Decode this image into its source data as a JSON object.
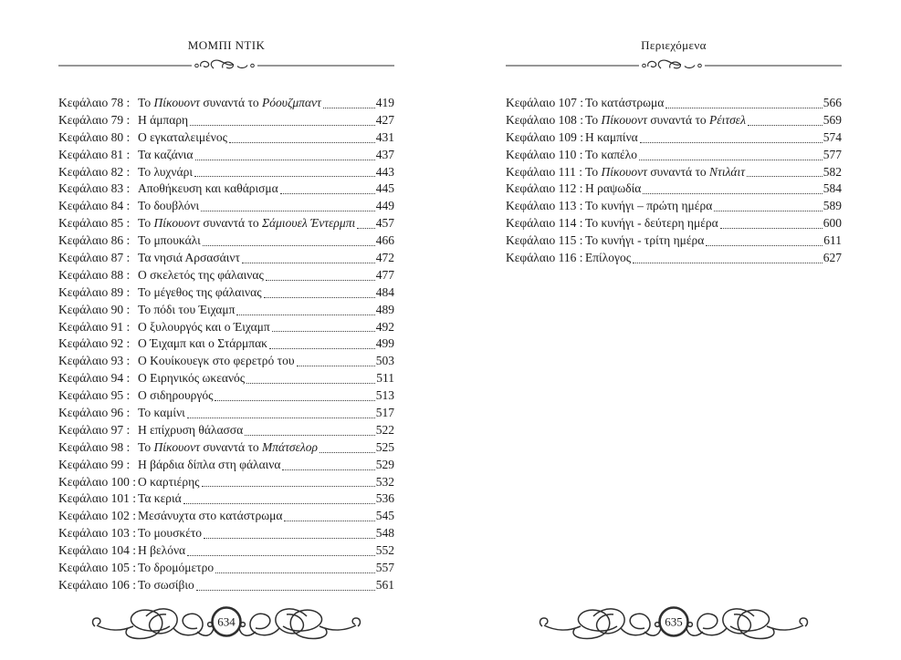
{
  "colors": {
    "background": "#ffffff",
    "text": "#1b1b1b",
    "ornament": "#2d2d2d"
  },
  "ornaments": {
    "header_divider": "scroll-rule-ornament",
    "footer": "calligraphic-flourish-with-folio"
  },
  "pages": [
    {
      "header": "ΜΟΜΠΙ ΝΤΙΚ",
      "folio": "634",
      "entries": [
        {
          "label": "Κεφάλαιο 78 :",
          "title": [
            [
              "Το ",
              false
            ],
            [
              "Πίκουοντ",
              true
            ],
            [
              " συναντά το ",
              false
            ],
            [
              "Ρόουζμπαντ",
              true
            ]
          ],
          "page": "419"
        },
        {
          "label": "Κεφάλαιο 79 :",
          "title": [
            [
              "Η άμπαρη",
              false
            ]
          ],
          "page": "427"
        },
        {
          "label": "Κεφάλαιο 80 :",
          "title": [
            [
              "Ο εγκαταλειμένος",
              false
            ]
          ],
          "page": "431"
        },
        {
          "label": "Κεφάλαιο 81 :",
          "title": [
            [
              "Τα καζάνια",
              false
            ]
          ],
          "page": "437"
        },
        {
          "label": "Κεφάλαιο 82 :",
          "title": [
            [
              "Το λυχνάρι",
              false
            ]
          ],
          "page": "443"
        },
        {
          "label": "Κεφάλαιο 83 :",
          "title": [
            [
              "Αποθήκευση και καθάρισμα",
              false
            ]
          ],
          "page": "445"
        },
        {
          "label": "Κεφάλαιο 84 :",
          "title": [
            [
              "Το δουβλόνι",
              false
            ]
          ],
          "page": "449"
        },
        {
          "label": "Κεφάλαιο 85 :",
          "title": [
            [
              "Το ",
              false
            ],
            [
              "Πίκουοντ",
              true
            ],
            [
              " συναντά το ",
              false
            ],
            [
              "Σάμιουελ Έντερμπι",
              true
            ]
          ],
          "page": "457"
        },
        {
          "label": "Κεφάλαιο 86 :",
          "title": [
            [
              "Το μπουκάλι",
              false
            ]
          ],
          "page": "466"
        },
        {
          "label": "Κεφάλαιο 87 :",
          "title": [
            [
              "Τα νησιά Αρσασάιντ",
              false
            ]
          ],
          "page": "472"
        },
        {
          "label": "Κεφάλαιο 88 :",
          "title": [
            [
              "Ο σκελετός της φάλαινας",
              false
            ]
          ],
          "page": "477"
        },
        {
          "label": "Κεφάλαιο 89 :",
          "title": [
            [
              "Το μέγεθος της φάλαινας",
              false
            ]
          ],
          "page": "484"
        },
        {
          "label": "Κεφάλαιο 90 :",
          "title": [
            [
              "Το πόδι του Έιχαμπ",
              false
            ]
          ],
          "page": "489"
        },
        {
          "label": "Κεφάλαιο 91 :",
          "title": [
            [
              "Ο ξυλουργός και ο Έιχαμπ",
              false
            ]
          ],
          "page": "492"
        },
        {
          "label": "Κεφάλαιο 92 :",
          "title": [
            [
              "Ο Έιχαμπ και ο Στάρμπακ",
              false
            ]
          ],
          "page": "499"
        },
        {
          "label": "Κεφάλαιο 93 :",
          "title": [
            [
              "Ο Κουίκουεγκ στο φερετρό του",
              false
            ]
          ],
          "page": "503"
        },
        {
          "label": "Κεφάλαιο 94 :",
          "title": [
            [
              "Ο Ειρηνικός ωκεανός",
              false
            ]
          ],
          "page": "511"
        },
        {
          "label": "Κεφάλαιο 95 :",
          "title": [
            [
              "Ο σιδηρουργός",
              false
            ]
          ],
          "page": "513"
        },
        {
          "label": "Κεφάλαιο 96 :",
          "title": [
            [
              "Το καμίνι",
              false
            ]
          ],
          "page": "517"
        },
        {
          "label": "Κεφάλαιο 97 :",
          "title": [
            [
              "Η επίχρυση θάλασσα",
              false
            ]
          ],
          "page": "522"
        },
        {
          "label": "Κεφάλαιο 98 :",
          "title": [
            [
              "Το ",
              false
            ],
            [
              "Πίκουοντ",
              true
            ],
            [
              " συναντά το ",
              false
            ],
            [
              "Μπάτσελορ",
              true
            ]
          ],
          "page": "525"
        },
        {
          "label": "Κεφάλαιο 99 :",
          "title": [
            [
              "Η βάρδια δίπλα στη φάλαινα",
              false
            ]
          ],
          "page": "529"
        },
        {
          "label": "Κεφάλαιο 100 :",
          "title": [
            [
              "Ο καρτιέρης",
              false
            ]
          ],
          "page": "532"
        },
        {
          "label": "Κεφάλαιο 101 :",
          "title": [
            [
              "Τα κεριά",
              false
            ]
          ],
          "page": "536"
        },
        {
          "label": "Κεφάλαιο 102 :",
          "title": [
            [
              "Μεσάνυχτα στο κατάστρωμα",
              false
            ]
          ],
          "page": "545"
        },
        {
          "label": "Κεφάλαιο 103 :",
          "title": [
            [
              "Το μουσκέτο",
              false
            ]
          ],
          "page": "548"
        },
        {
          "label": "Κεφάλαιο 104 :",
          "title": [
            [
              "Η βελόνα",
              false
            ]
          ],
          "page": "552"
        },
        {
          "label": "Κεφάλαιο 105 :",
          "title": [
            [
              "Το δρομόμετρο",
              false
            ]
          ],
          "page": "557"
        },
        {
          "label": "Κεφάλαιο 106 :",
          "title": [
            [
              "Το σωσίβιο",
              false
            ]
          ],
          "page": "561"
        }
      ]
    },
    {
      "header": "Περιεχόμενα",
      "folio": "635",
      "entries": [
        {
          "label": "Κεφάλαιο 107 :",
          "title": [
            [
              "Το κατάστρωμα",
              false
            ]
          ],
          "page": "566"
        },
        {
          "label": "Κεφάλαιο 108 :",
          "title": [
            [
              "Το ",
              false
            ],
            [
              "Πίκουοντ",
              true
            ],
            [
              " συναντά το ",
              false
            ],
            [
              "Ρέιτσελ",
              true
            ]
          ],
          "page": "569"
        },
        {
          "label": "Κεφάλαιο 109 :",
          "title": [
            [
              "Η καμπίνα",
              false
            ]
          ],
          "page": "574"
        },
        {
          "label": "Κεφάλαιο 110 :",
          "title": [
            [
              "Το καπέλο",
              false
            ]
          ],
          "page": "577"
        },
        {
          "label": "Κεφάλαιο 111 :",
          "title": [
            [
              "Το ",
              false
            ],
            [
              "Πίκουοντ",
              true
            ],
            [
              " συναντά το ",
              false
            ],
            [
              "Ντιλάιτ",
              true
            ]
          ],
          "page": "582"
        },
        {
          "label": "Κεφάλαιο 112 :",
          "title": [
            [
              "Η ραψωδία",
              false
            ]
          ],
          "page": "584"
        },
        {
          "label": "Κεφάλαιο 113 :",
          "title": [
            [
              "Το κυνήγι – πρώτη ημέρα",
              false
            ]
          ],
          "page": "589"
        },
        {
          "label": "Κεφάλαιο 114 :",
          "title": [
            [
              "Το κυνήγι - δεύτερη ημέρα",
              false
            ]
          ],
          "page": "600"
        },
        {
          "label": "Κεφάλαιο 115 :",
          "title": [
            [
              "Το κυνήγι - τρίτη ημέρα",
              false
            ]
          ],
          "page": "611"
        },
        {
          "label": "Κεφάλαιο 116 :",
          "title": [
            [
              "Επίλογος",
              false
            ]
          ],
          "page": "627"
        }
      ]
    }
  ]
}
